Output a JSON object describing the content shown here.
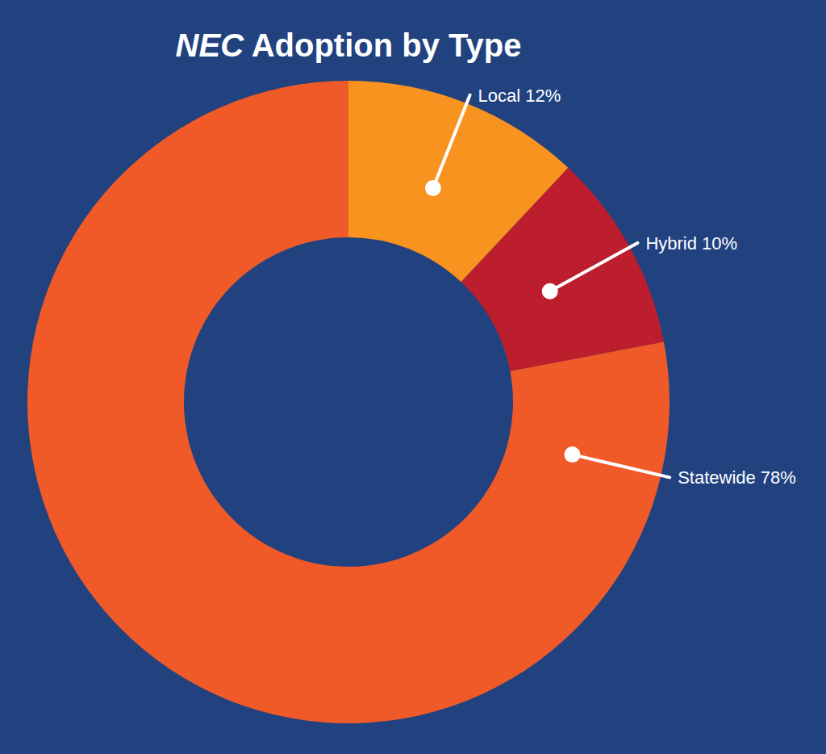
{
  "chart_data": {
    "type": "pie",
    "title": "NEC Adoption by Type",
    "categories": [
      "Local",
      "Hybrid",
      "Statewide"
    ],
    "values": [
      12,
      10,
      78
    ],
    "value_labels": [
      "12%",
      "10%",
      "78%"
    ],
    "colors": [
      "#f7931e",
      "#bd1e2e",
      "#f05a28"
    ],
    "data_labels": true
  }
}
